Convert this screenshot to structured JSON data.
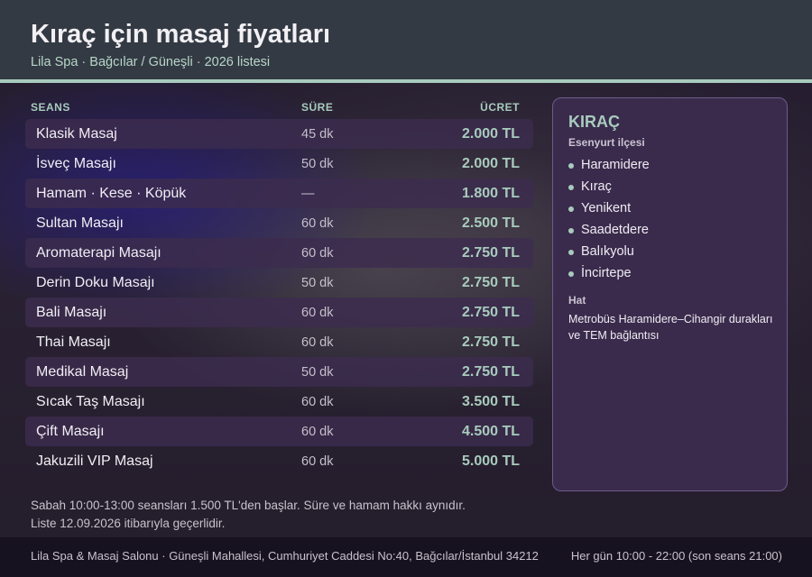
{
  "header": {
    "title": "Kıraç için masaj fiyatları",
    "subtitle": "Lila Spa · Bağcılar / Güneşli · 2026 listesi"
  },
  "table": {
    "columns": [
      "SEANS",
      "SÜRE",
      "ÜCRET"
    ],
    "rows": [
      {
        "name": "Klasik Masaj",
        "duration": "45 dk",
        "price": "2.000 TL"
      },
      {
        "name": "İsveç Masajı",
        "duration": "50 dk",
        "price": "2.000 TL"
      },
      {
        "name": "Hamam · Kese · Köpük",
        "duration": "—",
        "price": "1.800 TL"
      },
      {
        "name": "Sultan Masajı",
        "duration": "60 dk",
        "price": "2.500 TL"
      },
      {
        "name": "Aromaterapi Masajı",
        "duration": "60 dk",
        "price": "2.750 TL"
      },
      {
        "name": "Derin Doku Masajı",
        "duration": "50 dk",
        "price": "2.750 TL"
      },
      {
        "name": "Bali Masajı",
        "duration": "60 dk",
        "price": "2.750 TL"
      },
      {
        "name": "Thai Masajı",
        "duration": "60 dk",
        "price": "2.750 TL"
      },
      {
        "name": "Medikal Masaj",
        "duration": "50 dk",
        "price": "2.750 TL"
      },
      {
        "name": "Sıcak Taş Masajı",
        "duration": "60 dk",
        "price": "3.500 TL"
      },
      {
        "name": "Çift Masajı",
        "duration": "60 dk",
        "price": "4.500 TL"
      },
      {
        "name": "Jakuzili VIP Masaj",
        "duration": "60 dk",
        "price": "5.000 TL"
      }
    ]
  },
  "panel": {
    "title": "KIRAÇ",
    "subtitle": "Esenyurt ilçesi",
    "items": [
      "Haramidere",
      "Kıraç",
      "Yenikent",
      "Saadetdere",
      "Balıkyolu",
      "İncirtepe"
    ],
    "hat_label": "Hat",
    "hat_text": "Metrobüs Haramidere–Cihangir durakları ve TEM bağlantısı"
  },
  "note": {
    "line1": "Sabah 10:00-13:00 seansları 1.500 TL'den başlar. Süre ve hamam hakkı aynıdır.",
    "line2": "Liste 12.09.2026 itibarıyla geçerlidir."
  },
  "footer": {
    "address": "Lila Spa & Masaj Salonu · Güneşli Mahallesi, Cumhuriyet Caddesi No:40, Bağcılar/İstanbul 34212",
    "hours": "Her gün 10:00 - 22:00 (son seans 21:00)"
  },
  "colors": {
    "accent": "#a8cbbd",
    "header_bg": "#333a43",
    "panel_bg": "#3a2b4d",
    "row_stripe": "#3c2c4e"
  }
}
